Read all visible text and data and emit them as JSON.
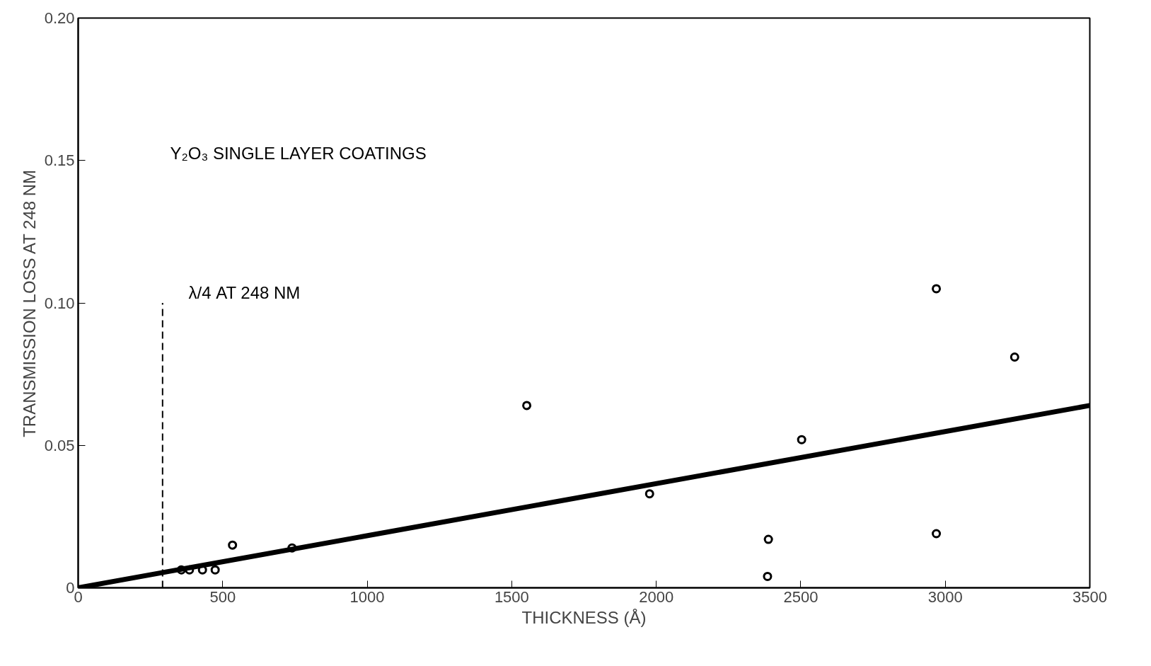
{
  "chart_data": {
    "type": "scatter",
    "xlabel": "THICKNESS (Å)",
    "ylabel": "TRANSMISSION LOSS AT 248 NM",
    "x": [
      357,
      385,
      430,
      474,
      534,
      740,
      1552,
      1977,
      2388,
      2385,
      2503,
      2969,
      2969,
      3240
    ],
    "series": [
      {
        "color": "#000000",
        "marker": "circle",
        "values": [
          0.0063,
          0.0063,
          0.0063,
          0.0063,
          0.015,
          0.014,
          0.064,
          0.033,
          0.017,
          0.004,
          0.052,
          0.105,
          0.019,
          0.081
        ]
      },
      {
        "type": "line",
        "color": "#000000",
        "x": [
          0,
          3500
        ],
        "values": [
          0,
          0.064
        ],
        "line_style": "solid"
      },
      {
        "type": "line",
        "color": "#000000",
        "x": [
          292,
          292
        ],
        "values": [
          0,
          0.1
        ],
        "line_style": "dashed"
      }
    ],
    "annotations": [
      "Y₂O₃ SINGLE LAYER COATINGS",
      "λ/4 AT 248 NM"
    ],
    "xlim": [
      0,
      3500
    ],
    "ylim": [
      0,
      0.2
    ],
    "xticks": [
      0,
      500,
      1000,
      1500,
      2000,
      2500,
      3000,
      3500
    ],
    "yticks": [
      0,
      0.05,
      {
        "value": 0.1,
        "label": "0.10"
      },
      0.15,
      {
        "value": 0.2,
        "label": "0.20"
      }
    ],
    "grid": false
  }
}
